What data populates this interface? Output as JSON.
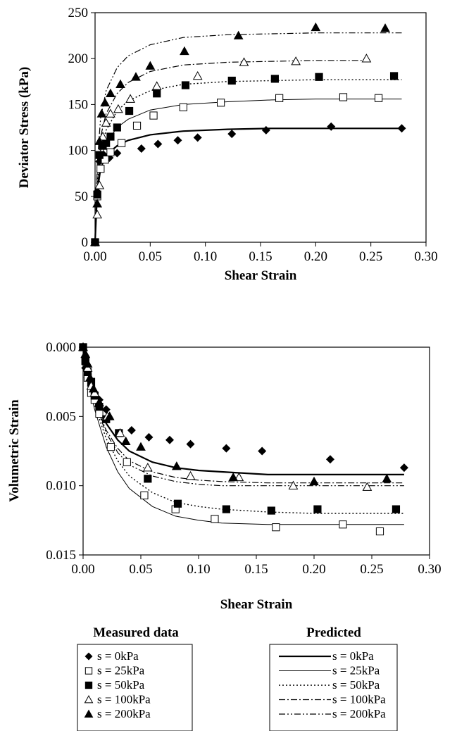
{
  "chart_data": [
    {
      "type": "scatter",
      "xlabel": "Shear Strain",
      "ylabel": "Deviator Stress (kPa)",
      "xlim": [
        0,
        0.3
      ],
      "ylim": [
        0,
        250
      ],
      "xticks": [
        "0.00",
        "0.05",
        "0.10",
        "0.15",
        "0.20",
        "0.25",
        "0.30"
      ],
      "yticks": [
        "0",
        "50",
        "100",
        "150",
        "200",
        "250"
      ],
      "measured": [
        {
          "name": "s = 0kPa",
          "marker": "diamond",
          "x": [
            0,
            0.002,
            0.004,
            0.008,
            0.013,
            0.02,
            0.042,
            0.057,
            0.075,
            0.093,
            0.124,
            0.155,
            0.214,
            0.278
          ],
          "y": [
            0,
            55,
            88,
            95,
            92,
            97,
            102,
            107,
            111,
            114,
            118,
            122,
            126,
            124
          ]
        },
        {
          "name": "s = 25kPa",
          "marker": "square-open",
          "x": [
            0,
            0.002,
            0.005,
            0.009,
            0.014,
            0.024,
            0.038,
            0.053,
            0.08,
            0.114,
            0.167,
            0.225,
            0.257
          ],
          "y": [
            0,
            50,
            80,
            90,
            98,
            108,
            127,
            138,
            147,
            152,
            157,
            158,
            157
          ]
        },
        {
          "name": "s = 50kPa",
          "marker": "square",
          "x": [
            0,
            0.002,
            0.004,
            0.007,
            0.01,
            0.014,
            0.02,
            0.031,
            0.056,
            0.082,
            0.124,
            0.163,
            0.203,
            0.271
          ],
          "y": [
            0,
            52,
            95,
            105,
            108,
            115,
            125,
            143,
            162,
            171,
            176,
            178,
            180,
            181
          ]
        },
        {
          "name": "s = 100kPa",
          "marker": "triangle-open",
          "x": [
            0,
            0.002,
            0.004,
            0.007,
            0.01,
            0.014,
            0.021,
            0.032,
            0.056,
            0.093,
            0.135,
            0.182,
            0.246
          ],
          "y": [
            0,
            30,
            62,
            115,
            130,
            140,
            145,
            156,
            170,
            181,
            196,
            197,
            200
          ]
        },
        {
          "name": "s = 200kPa",
          "marker": "triangle",
          "x": [
            0,
            0.002,
            0.004,
            0.006,
            0.009,
            0.014,
            0.023,
            0.037,
            0.05,
            0.081,
            0.13,
            0.2,
            0.263
          ],
          "y": [
            0,
            42,
            110,
            140,
            152,
            162,
            172,
            180,
            192,
            208,
            225,
            234,
            233
          ]
        }
      ],
      "predicted": [
        {
          "name": "s = 0kPa",
          "style": "solid-thick",
          "x": [
            0,
            0.002,
            0.005,
            0.01,
            0.02,
            0.03,
            0.05,
            0.08,
            0.12,
            0.16,
            0.2,
            0.24,
            0.278
          ],
          "y": [
            0,
            55,
            80,
            95,
            105,
            111,
            117,
            121,
            123,
            124,
            124,
            124,
            124
          ]
        },
        {
          "name": "s = 25kPa",
          "style": "solid-thin",
          "x": [
            0,
            0.002,
            0.005,
            0.01,
            0.02,
            0.03,
            0.05,
            0.08,
            0.12,
            0.16,
            0.2,
            0.24,
            0.278
          ],
          "y": [
            0,
            60,
            90,
            108,
            125,
            134,
            144,
            150,
            153,
            155,
            156,
            156,
            156
          ]
        },
        {
          "name": "s = 50kPa",
          "style": "dotted",
          "x": [
            0,
            0.002,
            0.005,
            0.01,
            0.02,
            0.03,
            0.05,
            0.08,
            0.12,
            0.16,
            0.2,
            0.24,
            0.278
          ],
          "y": [
            0,
            65,
            100,
            122,
            143,
            154,
            165,
            172,
            175,
            176,
            177,
            177,
            177
          ]
        },
        {
          "name": "s = 100kPa",
          "style": "dash-dot",
          "x": [
            0,
            0.002,
            0.005,
            0.01,
            0.02,
            0.03,
            0.05,
            0.08,
            0.12,
            0.16,
            0.2,
            0.24,
            0.25
          ],
          "y": [
            0,
            75,
            115,
            140,
            162,
            174,
            186,
            193,
            196,
            197,
            198,
            198,
            198
          ]
        },
        {
          "name": "s = 200kPa",
          "style": "dash-dot-dot",
          "x": [
            0,
            0.002,
            0.005,
            0.01,
            0.02,
            0.03,
            0.05,
            0.08,
            0.12,
            0.16,
            0.2,
            0.24,
            0.278
          ],
          "y": [
            0,
            85,
            135,
            165,
            190,
            203,
            215,
            223,
            226,
            227,
            228,
            228,
            228
          ]
        }
      ]
    },
    {
      "type": "scatter",
      "xlabel": "Shear Strain",
      "ylabel": "Volumetric Strain",
      "xlim": [
        0,
        0.3
      ],
      "ylim": [
        0,
        0.015
      ],
      "y_inverted": true,
      "xticks": [
        "0.00",
        "0.05",
        "0.10",
        "0.15",
        "0.20",
        "0.25",
        "0.30"
      ],
      "yticks": [
        "0.000",
        "0.005",
        "0.010",
        "0.015"
      ],
      "measured": [
        {
          "name": "s = 0kPa",
          "marker": "diamond",
          "x": [
            0,
            0.002,
            0.004,
            0.007,
            0.01,
            0.014,
            0.02,
            0.031,
            0.042,
            0.057,
            0.075,
            0.093,
            0.124,
            0.155,
            0.214,
            0.278
          ],
          "y": [
            0,
            0.0015,
            0.0022,
            0.0028,
            0.0035,
            0.0038,
            0.0045,
            0.0062,
            0.006,
            0.0065,
            0.0067,
            0.007,
            0.0073,
            0.0075,
            0.0081,
            0.0087
          ]
        },
        {
          "name": "s = 25kPa",
          "marker": "square-open",
          "x": [
            0,
            0.002,
            0.004,
            0.007,
            0.01,
            0.014,
            0.024,
            0.038,
            0.053,
            0.08,
            0.114,
            0.167,
            0.225,
            0.257
          ],
          "y": [
            0,
            0.001,
            0.0022,
            0.0033,
            0.0038,
            0.0048,
            0.0072,
            0.0083,
            0.0107,
            0.0117,
            0.0124,
            0.013,
            0.0128,
            0.0133
          ]
        },
        {
          "name": "s = 50kPa",
          "marker": "square",
          "x": [
            0,
            0.002,
            0.004,
            0.007,
            0.01,
            0.014,
            0.02,
            0.031,
            0.056,
            0.082,
            0.124,
            0.163,
            0.203,
            0.271
          ],
          "y": [
            0,
            0.001,
            0.0018,
            0.0025,
            0.0035,
            0.0043,
            0.0052,
            0.0062,
            0.0095,
            0.0113,
            0.0117,
            0.0118,
            0.0117,
            0.0117
          ]
        },
        {
          "name": "s = 100kPa",
          "marker": "triangle-open",
          "x": [
            0,
            0.002,
            0.004,
            0.007,
            0.01,
            0.014,
            0.021,
            0.032,
            0.056,
            0.093,
            0.135,
            0.182,
            0.246
          ],
          "y": [
            0,
            0.0005,
            0.0015,
            0.0028,
            0.0033,
            0.004,
            0.005,
            0.0062,
            0.0087,
            0.0093,
            0.0094,
            0.01,
            0.0101
          ]
        },
        {
          "name": "s = 200kPa",
          "marker": "triangle",
          "x": [
            0,
            0.002,
            0.004,
            0.006,
            0.009,
            0.014,
            0.023,
            0.037,
            0.05,
            0.081,
            0.13,
            0.2,
            0.263
          ],
          "y": [
            0,
            0.0005,
            0.0012,
            0.0022,
            0.003,
            0.004,
            0.005,
            0.0068,
            0.0072,
            0.0086,
            0.0094,
            0.0097,
            0.0095
          ]
        }
      ],
      "predicted": [
        {
          "name": "s = 0kPa",
          "style": "solid-thick",
          "x": [
            0,
            0.005,
            0.01,
            0.02,
            0.03,
            0.04,
            0.06,
            0.08,
            0.1,
            0.12,
            0.16,
            0.2,
            0.24,
            0.278
          ],
          "y": [
            0,
            0.0025,
            0.0038,
            0.0055,
            0.0067,
            0.0075,
            0.0083,
            0.0087,
            0.0089,
            0.009,
            0.0092,
            0.0092,
            0.0092,
            0.0092
          ]
        },
        {
          "name": "s = 25kPa",
          "style": "solid-thin",
          "x": [
            0,
            0.005,
            0.01,
            0.02,
            0.03,
            0.04,
            0.06,
            0.08,
            0.1,
            0.12,
            0.16,
            0.2,
            0.24,
            0.278
          ],
          "y": [
            0,
            0.0028,
            0.0045,
            0.0072,
            0.009,
            0.0102,
            0.0115,
            0.0122,
            0.0125,
            0.0127,
            0.0128,
            0.0128,
            0.0128,
            0.0128
          ]
        },
        {
          "name": "s = 50kPa",
          "style": "dotted",
          "x": [
            0,
            0.005,
            0.01,
            0.02,
            0.03,
            0.04,
            0.06,
            0.08,
            0.1,
            0.12,
            0.16,
            0.2,
            0.24,
            0.278
          ],
          "y": [
            0,
            0.0026,
            0.0042,
            0.0066,
            0.0082,
            0.0093,
            0.0105,
            0.0112,
            0.0115,
            0.0117,
            0.0119,
            0.012,
            0.012,
            0.012
          ]
        },
        {
          "name": "s = 100kPa",
          "style": "dash-dot",
          "x": [
            0,
            0.005,
            0.01,
            0.02,
            0.03,
            0.04,
            0.06,
            0.08,
            0.1,
            0.12,
            0.16,
            0.2,
            0.24,
            0.278
          ],
          "y": [
            0,
            0.0025,
            0.004,
            0.006,
            0.0073,
            0.0082,
            0.009,
            0.0094,
            0.0096,
            0.0097,
            0.0098,
            0.0098,
            0.0098,
            0.0098
          ]
        },
        {
          "name": "s = 200kPa",
          "style": "dash-dot-dot",
          "x": [
            0,
            0.005,
            0.01,
            0.02,
            0.03,
            0.04,
            0.06,
            0.08,
            0.1,
            0.12,
            0.16,
            0.2,
            0.24,
            0.278
          ],
          "y": [
            0,
            0.0025,
            0.004,
            0.0062,
            0.0076,
            0.0085,
            0.0093,
            0.0097,
            0.0099,
            0.01,
            0.01,
            0.01,
            0.01,
            0.01
          ]
        }
      ]
    }
  ],
  "legend": {
    "measured_title": "Measured data",
    "predicted_title": "Predicted",
    "measured_items": [
      {
        "marker": "diamond",
        "label": "s = 0kPa"
      },
      {
        "marker": "square-open",
        "label": "s = 25kPa"
      },
      {
        "marker": "square",
        "label": "s = 50kPa"
      },
      {
        "marker": "triangle-open",
        "label": "s = 100kPa"
      },
      {
        "marker": "triangle",
        "label": "s = 200kPa"
      }
    ],
    "predicted_items": [
      {
        "style": "solid-thick",
        "label": "s = 0kPa"
      },
      {
        "style": "solid-thin",
        "label": "s = 25kPa"
      },
      {
        "style": "dotted",
        "label": "s = 50kPa"
      },
      {
        "style": "dash-dot",
        "label": "s = 100kPa"
      },
      {
        "style": "dash-dot-dot",
        "label": "s = 200kPa"
      }
    ]
  }
}
